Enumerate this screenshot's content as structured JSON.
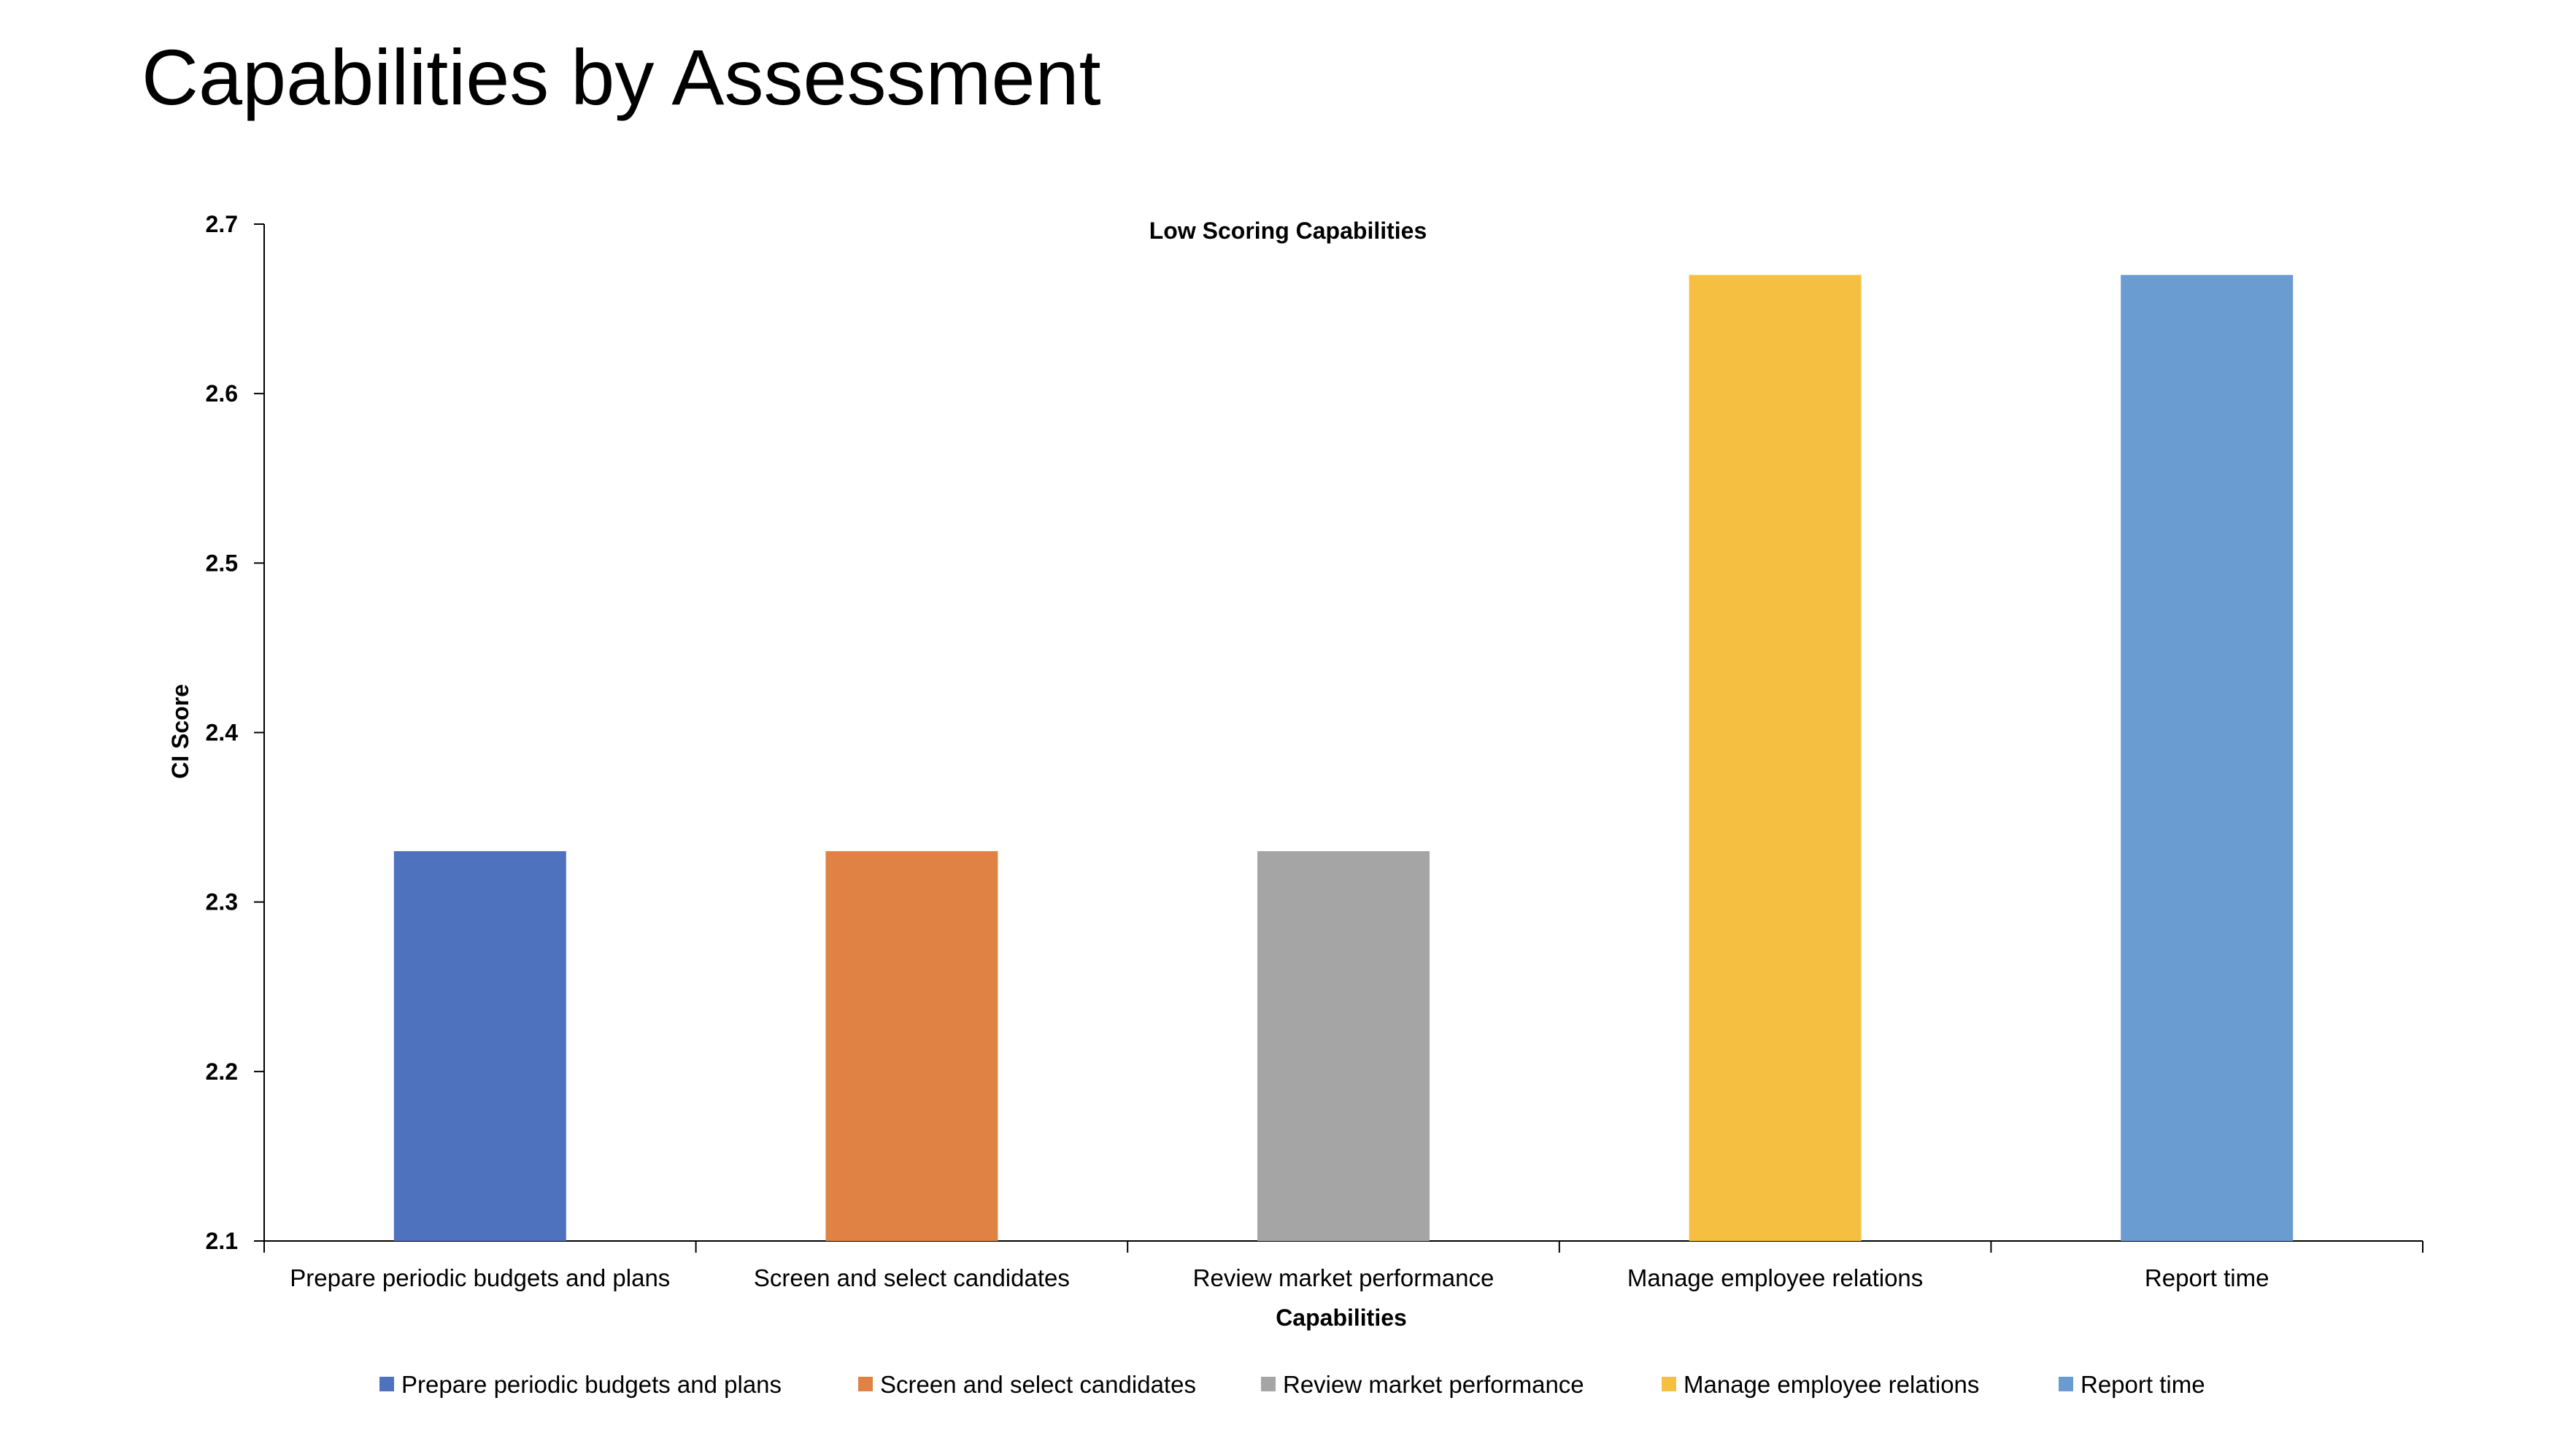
{
  "slide": {
    "title": "Capabilities by Assessment"
  },
  "chart_data": {
    "type": "bar",
    "title": "Low Scoring Capabilities",
    "xlabel": "Capabilities",
    "ylabel": "CI Score",
    "ylim": [
      2.1,
      2.7
    ],
    "yticks": [
      "2.1",
      "2.2",
      "2.3",
      "2.4",
      "2.5",
      "2.6",
      "2.7"
    ],
    "categories": [
      "Prepare periodic budgets and plans",
      "Screen and select candidates",
      "Review market performance",
      "Manage employee relations",
      "Report time"
    ],
    "values": [
      2.33,
      2.33,
      2.33,
      2.67,
      2.67
    ],
    "colors": [
      "#4e72be",
      "#df8244",
      "#a5a5a5",
      "#f5bf42",
      "#6a9bd1"
    ],
    "legend_position": "bottom",
    "grid": false
  }
}
